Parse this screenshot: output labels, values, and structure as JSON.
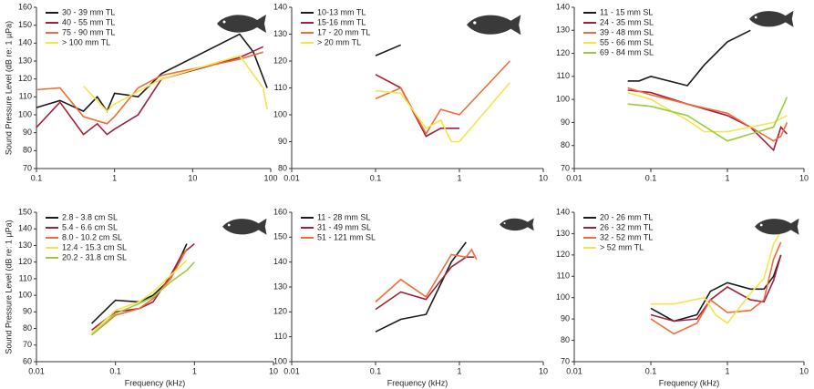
{
  "chart_data": [
    {
      "type": "line",
      "xscale": "log",
      "ylabel": "Sound Pressure Level (dB re: 1 µPa)",
      "xlim": [
        0.1,
        100
      ],
      "xticks": [
        0.1,
        1,
        10,
        100
      ],
      "ylim": [
        70,
        160
      ],
      "yticks": [
        70,
        80,
        90,
        100,
        110,
        120,
        130,
        140,
        150,
        160
      ],
      "series": [
        {
          "name": "30 - 39 mm TL",
          "color": "#1a1a1a",
          "x": [
            0.1,
            0.2,
            0.4,
            0.6,
            0.8,
            1,
            1.5,
            2,
            4,
            40,
            60,
            90
          ],
          "values": [
            104,
            108,
            102,
            110,
            102,
            112,
            111,
            110,
            123,
            145,
            135,
            115
          ]
        },
        {
          "name": "40 - 55 mm TL",
          "color": "#a3203a",
          "x": [
            0.1,
            0.2,
            0.4,
            0.6,
            0.8,
            1,
            2,
            4,
            40,
            80
          ],
          "values": [
            93,
            107,
            89,
            95,
            89,
            92,
            100,
            120,
            132,
            138
          ]
        },
        {
          "name": "75 - 90 mm TL",
          "color": "#f26b3a",
          "x": [
            0.1,
            0.2,
            0.4,
            0.8,
            1,
            2,
            4,
            40,
            80
          ],
          "values": [
            114,
            115,
            99,
            95,
            99,
            115,
            122,
            131,
            135
          ]
        },
        {
          "name": "> 100 mm TL",
          "color": "#f2e64a",
          "x": [
            0.4,
            0.8,
            1,
            2,
            4,
            40,
            80,
            90
          ],
          "values": [
            116,
            102,
            106,
            113,
            120,
            133,
            115,
            103
          ]
        }
      ]
    },
    {
      "type": "line",
      "xscale": "log",
      "xlim": [
        0.01,
        10
      ],
      "xticks": [
        0.01,
        0.1,
        1,
        10
      ],
      "ylim": [
        80,
        140
      ],
      "yticks": [
        80,
        90,
        100,
        110,
        120,
        130,
        140
      ],
      "series": [
        {
          "name": "10-13 mm TL",
          "color": "#1a1a1a",
          "x": [
            0.1,
            0.2
          ],
          "values": [
            122,
            126
          ]
        },
        {
          "name": "15-16 mm TL",
          "color": "#a3203a",
          "x": [
            0.1,
            0.2,
            0.4,
            0.6,
            1
          ],
          "values": [
            115,
            110,
            92,
            95,
            95
          ]
        },
        {
          "name": "17 - 20 mm TL",
          "color": "#f26b3a",
          "x": [
            0.1,
            0.2,
            0.4,
            0.6,
            1,
            4
          ],
          "values": [
            106,
            110,
            93,
            102,
            100,
            120
          ]
        },
        {
          "name": "> 20 mm TL",
          "color": "#f2e64a",
          "x": [
            0.1,
            0.2,
            0.4,
            0.6,
            0.8,
            1,
            4
          ],
          "values": [
            109,
            108,
            95,
            98,
            90,
            90,
            112
          ]
        }
      ]
    },
    {
      "type": "line",
      "xscale": "log",
      "xlim": [
        0.01,
        10
      ],
      "xticks": [
        0.01,
        0.1,
        1,
        10
      ],
      "ylim": [
        70,
        140
      ],
      "yticks": [
        70,
        80,
        90,
        100,
        110,
        120,
        130,
        140
      ],
      "series": [
        {
          "name": "11 - 15 mm SL",
          "color": "#1a1a1a",
          "x": [
            0.05,
            0.07,
            0.1,
            0.3,
            0.5,
            1,
            2
          ],
          "values": [
            108,
            108,
            110,
            106,
            115,
            125,
            130
          ]
        },
        {
          "name": "24 - 35 mm SL",
          "color": "#a3203a",
          "x": [
            0.05,
            0.1,
            0.3,
            1,
            2,
            4,
            5,
            6
          ],
          "values": [
            104,
            103,
            98,
            93,
            88,
            78,
            88,
            85
          ]
        },
        {
          "name": "39 - 48 mm SL",
          "color": "#f26b3a",
          "x": [
            0.05,
            0.1,
            0.3,
            1,
            2,
            4,
            5,
            6
          ],
          "values": [
            105,
            102,
            98,
            94,
            88,
            82,
            84,
            90
          ]
        },
        {
          "name": "55 - 66 mm SL",
          "color": "#f2e64a",
          "x": [
            0.05,
            0.1,
            0.3,
            0.5,
            1,
            2,
            4,
            6
          ],
          "values": [
            103,
            100,
            91,
            86,
            86,
            88,
            90,
            93
          ]
        },
        {
          "name": "69 - 84 mm SL",
          "color": "#9ccc3c",
          "x": [
            0.05,
            0.1,
            0.3,
            1,
            2,
            4,
            6
          ],
          "values": [
            98,
            97,
            93,
            82,
            85,
            88,
            101
          ]
        }
      ]
    },
    {
      "type": "line",
      "xscale": "log",
      "ylabel": "Sound Pressure Level (dB re: 1 µPa)",
      "xlabel": "Frequency (kHz)",
      "xlim": [
        0.01,
        10
      ],
      "xticks": [
        0.01,
        0.1,
        1,
        10
      ],
      "ylim": [
        60,
        150
      ],
      "yticks": [
        60,
        70,
        80,
        90,
        100,
        110,
        120,
        130,
        140,
        150
      ],
      "series": [
        {
          "name": "2.8 - 3.8 cm SL",
          "color": "#1a1a1a",
          "x": [
            0.05,
            0.1,
            0.2,
            0.3,
            0.5,
            0.8
          ],
          "values": [
            83,
            97,
            96,
            100,
            110,
            131
          ]
        },
        {
          "name": "5.4 - 6.6 cm SL",
          "color": "#a3203a",
          "x": [
            0.05,
            0.1,
            0.2,
            0.3,
            0.5,
            0.7,
            1
          ],
          "values": [
            79,
            90,
            92,
            96,
            112,
            125,
            131
          ]
        },
        {
          "name": "8.0 - 10.2 cm SL",
          "color": "#f26b3a",
          "x": [
            0.05,
            0.1,
            0.2,
            0.3,
            0.5,
            0.8
          ],
          "values": [
            76,
            88,
            92,
            98,
            110,
            128
          ]
        },
        {
          "name": "12.4 - 15.3 cm SL",
          "color": "#f2e64a",
          "x": [
            0.05,
            0.1,
            0.2,
            0.3,
            0.5,
            0.8
          ],
          "values": [
            77,
            91,
            96,
            102,
            112,
            121
          ]
        },
        {
          "name": "20.2 - 31.8 cm SL",
          "color": "#9ccc3c",
          "x": [
            0.05,
            0.1,
            0.2,
            0.3,
            0.5,
            0.8,
            1
          ],
          "values": [
            76,
            89,
            95,
            99,
            108,
            115,
            120
          ]
        }
      ]
    },
    {
      "type": "line",
      "xscale": "log",
      "xlabel": "Frequency (kHz)",
      "xlim": [
        0.01,
        10
      ],
      "xticks": [
        0.01,
        0.1,
        1,
        10
      ],
      "ylim": [
        100,
        160
      ],
      "yticks": [
        100,
        110,
        120,
        130,
        140,
        150,
        160
      ],
      "series": [
        {
          "name": "11 - 28 mm SL",
          "color": "#1a1a1a",
          "x": [
            0.1,
            0.2,
            0.4,
            0.8,
            1.2
          ],
          "values": [
            112,
            117,
            119,
            140,
            148
          ]
        },
        {
          "name": "31 - 49 mm SL",
          "color": "#a3203a",
          "x": [
            0.1,
            0.2,
            0.4,
            0.8,
            1.2,
            1.5
          ],
          "values": [
            121,
            128,
            125,
            138,
            142,
            142
          ]
        },
        {
          "name": "51 - 121 mm SL",
          "color": "#f26b3a",
          "x": [
            0.1,
            0.2,
            0.4,
            0.8,
            1.2,
            1.4,
            1.6
          ],
          "values": [
            124,
            133,
            126,
            143,
            142,
            145,
            141
          ]
        }
      ]
    },
    {
      "type": "line",
      "xscale": "log",
      "xlabel": "Frequency (kHz)",
      "xlim": [
        0.01,
        10
      ],
      "xticks": [
        0.01,
        0.1,
        1,
        10
      ],
      "ylim": [
        70,
        140
      ],
      "yticks": [
        70,
        80,
        90,
        100,
        110,
        120,
        130,
        140
      ],
      "series": [
        {
          "name": "20 - 26 mm TL",
          "color": "#1a1a1a",
          "x": [
            0.1,
            0.2,
            0.4,
            0.6,
            1,
            2,
            3,
            4,
            5
          ],
          "values": [
            95,
            89,
            92,
            103,
            107,
            104,
            104,
            110,
            120
          ]
        },
        {
          "name": "26 - 32 mm TL",
          "color": "#a3203a",
          "x": [
            0.1,
            0.2,
            0.4,
            0.6,
            1,
            2,
            3,
            4,
            5
          ],
          "values": [
            92,
            89,
            90,
            99,
            105,
            99,
            98,
            108,
            120
          ]
        },
        {
          "name": "32 - 52 mm TL",
          "color": "#f26b3a",
          "x": [
            0.1,
            0.2,
            0.4,
            0.6,
            1,
            2,
            3,
            4,
            5
          ],
          "values": [
            90,
            83,
            88,
            99,
            93,
            94,
            99,
            118,
            126
          ]
        },
        {
          "name": "> 52 mm TL",
          "color": "#f2e64a",
          "x": [
            0.1,
            0.2,
            0.5,
            0.7,
            1,
            2,
            3,
            4,
            5
          ],
          "values": [
            97,
            97,
            100,
            92,
            88,
            102,
            109,
            125,
            131
          ]
        }
      ]
    }
  ]
}
